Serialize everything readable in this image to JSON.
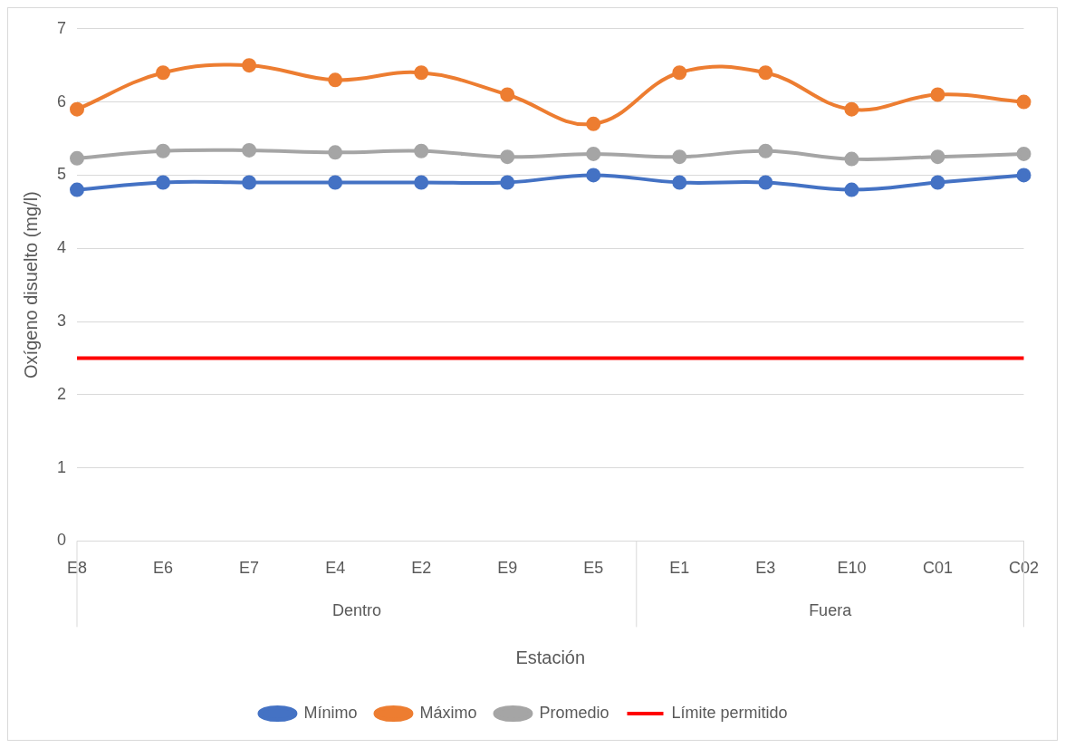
{
  "chart_data": {
    "type": "line",
    "xlabel": "Estación",
    "ylabel": "Oxígeno disuelto (mg/l)",
    "categories": [
      "E8",
      "E6",
      "E7",
      "E4",
      "E2",
      "E9",
      "E5",
      "E1",
      "E3",
      "E10",
      "C01",
      "C02"
    ],
    "series": [
      {
        "name": "Mínimo",
        "color": "#4472c4",
        "values": [
          4.8,
          4.9,
          4.9,
          4.9,
          4.9,
          4.9,
          5.0,
          4.9,
          4.9,
          4.8,
          4.9,
          5.0
        ]
      },
      {
        "name": "Máximo",
        "color": "#ed7d31",
        "values": [
          5.9,
          6.4,
          6.5,
          6.3,
          6.4,
          6.1,
          5.7,
          6.4,
          6.4,
          5.9,
          6.1,
          6.0
        ]
      },
      {
        "name": "Promedio",
        "color": "#a5a5a5",
        "values": [
          5.23,
          5.33,
          5.34,
          5.31,
          5.33,
          5.25,
          5.29,
          5.25,
          5.33,
          5.22,
          5.25,
          5.29
        ]
      }
    ],
    "ref_lines": [
      {
        "axis": "y",
        "value": 2.5,
        "label": "Límite permitido",
        "color": "#ff0000"
      }
    ],
    "annotations": [
      "Dentro",
      "Fuera"
    ],
    "ylim": [
      0,
      7
    ],
    "yticks": [
      0,
      1,
      2,
      3,
      4,
      5,
      6,
      7
    ],
    "grid": "y",
    "legend": "bottom",
    "marker": "circle",
    "line_style": "solid"
  }
}
